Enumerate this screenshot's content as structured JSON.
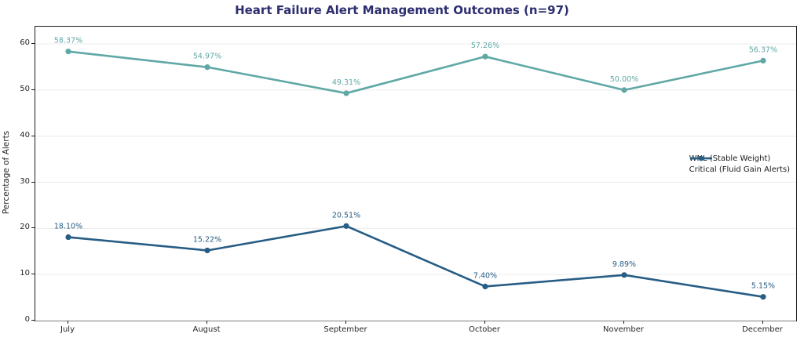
{
  "title": "Heart Failure Alert Management Outcomes (n=97)",
  "chart_data": {
    "type": "line",
    "categories": [
      "July",
      "August",
      "September",
      "October",
      "November",
      "December"
    ],
    "series": [
      {
        "name": "WNL (Stable Weight)",
        "color": "#5fa8a5",
        "values": [
          58.37,
          54.97,
          49.31,
          57.26,
          50.0,
          56.37
        ],
        "point_labels": [
          "58.37%",
          "54.97%",
          "49.31%",
          "57.26%",
          "50.00%",
          "56.37%"
        ]
      },
      {
        "name": "Critical (Fluid Gain Alerts)",
        "color": "#275d85",
        "values": [
          18.1,
          15.22,
          20.51,
          7.4,
          9.89,
          5.15
        ],
        "point_labels": [
          "18.10%",
          "15.22%",
          "20.51%",
          "7.40%",
          "9.89%",
          "5.15%"
        ]
      }
    ],
    "title": "Heart Failure Alert Management Outcomes (n=97)",
    "xlabel": "",
    "ylabel": "Percentage of Alerts",
    "ylim": [
      0,
      63.75
    ],
    "yticks": [
      0,
      10,
      20,
      30,
      40,
      50,
      60
    ],
    "grid": true,
    "legend_position": "center right"
  },
  "style": {
    "title_color": "#2d2e6f",
    "axis_color": "#1c1c1c",
    "tick_label_color": "#262626",
    "grid_color": "#ececec",
    "background": "#ffffff"
  }
}
